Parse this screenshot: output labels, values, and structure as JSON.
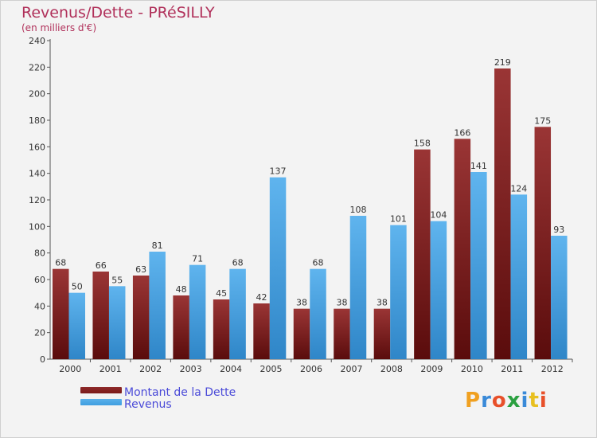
{
  "title": "Revenus/Dette - PRéSILLY",
  "subtitle": "(en milliers d'€)",
  "logo": "Proxiti",
  "colors": {
    "dette": "#7a1a1a",
    "revenus": "#3f9ee0",
    "title": "#b0305a",
    "legend_text": "#4a4ad8",
    "background": "#f3f3f3"
  },
  "legend": [
    {
      "label": "Montant de la Dette",
      "color": "#7a1a1a"
    },
    {
      "label": "Revenus",
      "color": "#3f9ee0"
    }
  ],
  "chart_data": {
    "type": "bar",
    "title": "Revenus/Dette - PRéSILLY",
    "subtitle": "(en milliers d'€)",
    "categories": [
      "2000",
      "2001",
      "2002",
      "2003",
      "2004",
      "2005",
      "2006",
      "2007",
      "2008",
      "2009",
      "2010",
      "2011",
      "2012"
    ],
    "series": [
      {
        "name": "Montant de la Dette",
        "values": [
          68,
          66,
          63,
          48,
          45,
          42,
          38,
          38,
          38,
          158,
          166,
          219,
          175
        ]
      },
      {
        "name": "Revenus",
        "values": [
          50,
          55,
          81,
          71,
          68,
          137,
          68,
          108,
          101,
          104,
          141,
          124,
          93
        ]
      }
    ],
    "ylim": [
      0,
      240
    ],
    "yticks": [
      0,
      20,
      40,
      60,
      80,
      100,
      120,
      140,
      160,
      180,
      200,
      220,
      240
    ],
    "grid": false,
    "legend_position": "bottom-left"
  }
}
